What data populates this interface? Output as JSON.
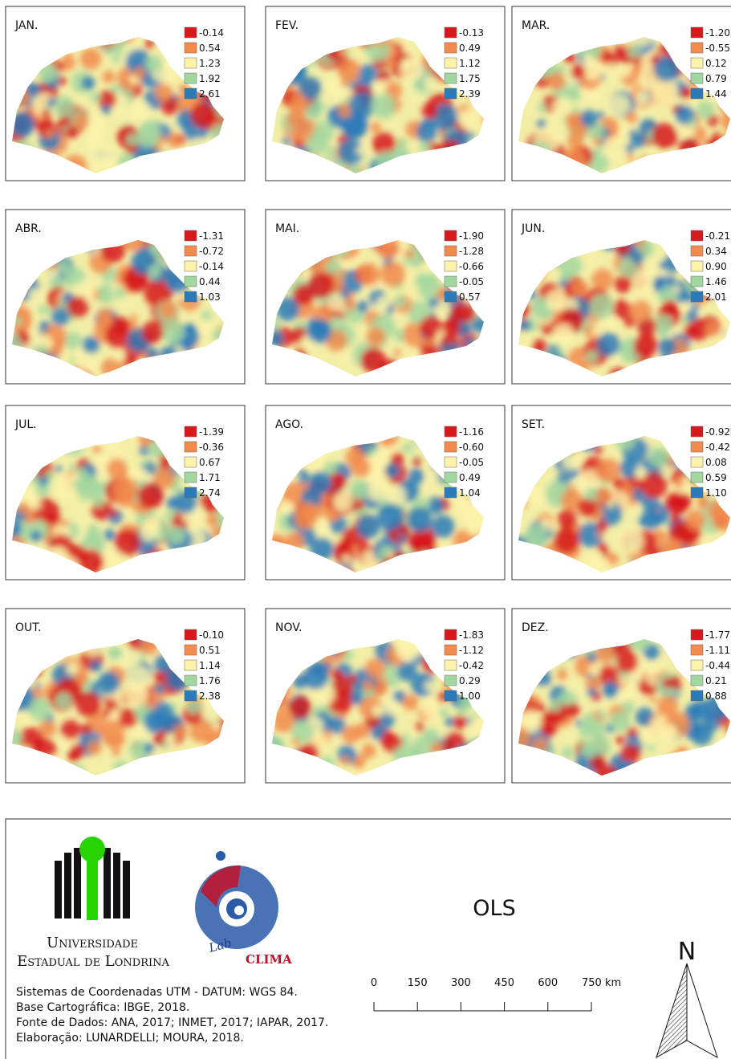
{
  "panels": [
    {
      "month": "JAN.",
      "legend": [
        "-0.14",
        "0.54",
        "1.23",
        "1.92",
        "2.61"
      ]
    },
    {
      "month": "FEV.",
      "legend": [
        "-0.13",
        "0.49",
        "1.12",
        "1.75",
        "2.39"
      ]
    },
    {
      "month": "MAR.",
      "legend": [
        "-1.20",
        "-0.55",
        "0.12",
        "0.79",
        "1.44"
      ]
    },
    {
      "month": "ABR.",
      "legend": [
        "-1.31",
        "-0.72",
        "-0.14",
        "0.44",
        "1.03"
      ]
    },
    {
      "month": "MAI.",
      "legend": [
        "-1.90",
        "-1.28",
        "-0.66",
        "-0.05",
        "0.57"
      ]
    },
    {
      "month": "JUN.",
      "legend": [
        "-0.21",
        "0.34",
        "0.90",
        "1.46",
        "2.01"
      ]
    },
    {
      "month": "JUL.",
      "legend": [
        "-1.39",
        "-0.36",
        "0.67",
        "1.71",
        "2.74"
      ]
    },
    {
      "month": "AGO.",
      "legend": [
        "-1.16",
        "-0.60",
        "-0.05",
        "0.49",
        "1.04"
      ]
    },
    {
      "month": "SET.",
      "legend": [
        "-0.92",
        "-0.42",
        "0.08",
        "0.59",
        "1.10"
      ]
    },
    {
      "month": "OUT.",
      "legend": [
        "-0.10",
        "0.51",
        "1.14",
        "1.76",
        "2.38"
      ]
    },
    {
      "month": "NOV.",
      "legend": [
        "-1.83",
        "-1.12",
        "-0.42",
        "0.29",
        "1.00"
      ]
    },
    {
      "month": "DEZ.",
      "legend": [
        "-1.77",
        "-1.11",
        "-0.44",
        "0.21",
        "0.88"
      ]
    }
  ],
  "footer": {
    "university": [
      "Universidade",
      "Estadual de Londrina"
    ],
    "lab": [
      "Lab",
      "CLIMA"
    ],
    "method": "OLS",
    "scale": [
      "0",
      "150",
      "300",
      "450",
      "600",
      "750 km"
    ],
    "north": "N",
    "credits": [
      "Sistemas de Coordenadas UTM - DATUM: WGS 84.",
      "Base Cartográfica: IBGE, 2018.",
      "Fonte de Dados: ANA, 2017; INMET, 2017; IAPAR, 2017.",
      "Elaboração: LUNARDELLI; MOURA, 2018."
    ]
  }
}
